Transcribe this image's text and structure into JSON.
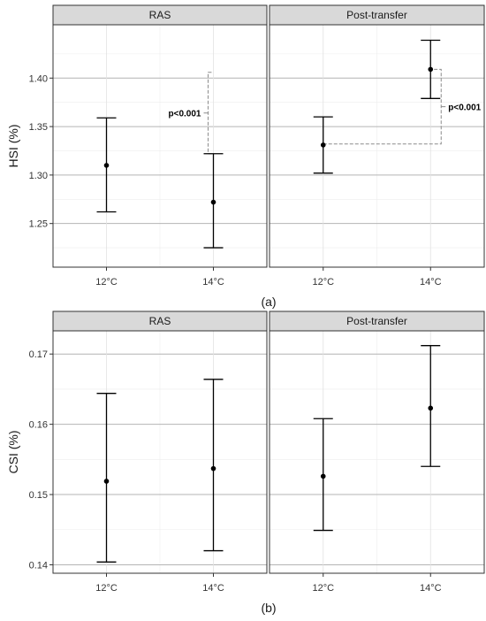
{
  "chart_data": [
    {
      "type": "errorbar",
      "caption": "(a)",
      "ylabel": "HSI (%)",
      "ylim": [
        1.205,
        1.455
      ],
      "yticks": [
        1.25,
        1.3,
        1.35,
        1.4
      ],
      "ytick_labels": [
        "1.25",
        "1.30",
        "1.35",
        "1.40"
      ],
      "categories": [
        "12°C",
        "14°C"
      ],
      "grid": true,
      "panels": [
        {
          "name": "RAS",
          "points": [
            {
              "x": "12°C",
              "y": 1.31,
              "lower": 1.262,
              "upper": 1.359
            },
            {
              "x": "14°C",
              "y": 1.272,
              "lower": 1.225,
              "upper": 1.322
            }
          ],
          "annotation": {
            "text": "p<0.001",
            "from": 1.322,
            "to": 1.406
          }
        },
        {
          "name": "Post-transfer",
          "points": [
            {
              "x": "12°C",
              "y": 1.331,
              "lower": 1.302,
              "upper": 1.36
            },
            {
              "x": "14°C",
              "y": 1.409,
              "lower": 1.379,
              "upper": 1.439
            }
          ],
          "annotation": {
            "text": "p<0.001",
            "from": 1.332,
            "to": 1.409
          }
        }
      ]
    },
    {
      "type": "errorbar",
      "caption": "(b)",
      "ylabel": "CSI (%)",
      "ylim": [
        0.1388,
        0.1733
      ],
      "yticks": [
        0.14,
        0.15,
        0.16,
        0.17
      ],
      "ytick_labels": [
        "0.14",
        "0.15",
        "0.16",
        "0.17"
      ],
      "categories": [
        "12°C",
        "14°C"
      ],
      "grid": true,
      "panels": [
        {
          "name": "RAS",
          "points": [
            {
              "x": "12°C",
              "y": 0.1519,
              "lower": 0.1404,
              "upper": 0.1644
            },
            {
              "x": "14°C",
              "y": 0.1537,
              "lower": 0.142,
              "upper": 0.1664
            }
          ]
        },
        {
          "name": "Post-transfer",
          "points": [
            {
              "x": "12°C",
              "y": 0.1526,
              "lower": 0.1449,
              "upper": 0.1608
            },
            {
              "x": "14°C",
              "y": 0.1623,
              "lower": 0.154,
              "upper": 0.1712
            }
          ]
        }
      ]
    }
  ]
}
